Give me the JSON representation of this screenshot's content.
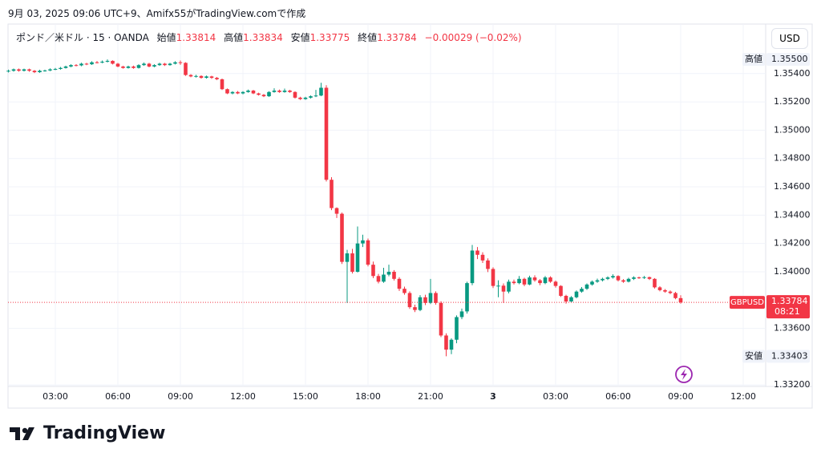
{
  "header": {
    "text": "9月 03, 2025 09:06 UTC+9、Amifx55がTradingView.comで作成"
  },
  "chart_data": {
    "type": "candlestick",
    "legend": {
      "symbol": "ポンド／米ドル · 15 · OANDA",
      "open_label": "始値",
      "high_label": "高値",
      "low_label": "安値",
      "close_label": "終値",
      "change": "−0.00029 (−0.02%)"
    },
    "currency": "USD",
    "up_color": "#089981",
    "down_color": "#f23645",
    "grid": true,
    "ylim": [
      1.3319,
      1.3575
    ],
    "yticks": [
      {
        "value": 1.354,
        "label": "1.35400"
      },
      {
        "value": 1.352,
        "label": "1.35200"
      },
      {
        "value": 1.35,
        "label": "1.35000"
      },
      {
        "value": 1.348,
        "label": "1.34800"
      },
      {
        "value": 1.346,
        "label": "1.34600"
      },
      {
        "value": 1.344,
        "label": "1.34400"
      },
      {
        "value": 1.342,
        "label": "1.34200"
      },
      {
        "value": 1.34,
        "label": "1.34000"
      },
      {
        "value": 1.336,
        "label": "1.33600"
      },
      {
        "value": 1.332,
        "label": "1.33200"
      }
    ],
    "xticks": [
      {
        "value": "09-02 03:00",
        "label": "03:00"
      },
      {
        "value": "09-02 06:00",
        "label": "06:00"
      },
      {
        "value": "09-02 09:00",
        "label": "09:00"
      },
      {
        "value": "09-02 12:00",
        "label": "12:00"
      },
      {
        "value": "09-02 15:00",
        "label": "15:00"
      },
      {
        "value": "09-02 18:00",
        "label": "18:00"
      },
      {
        "value": "09-02 21:00",
        "label": "21:00"
      },
      {
        "value": "09-03 00:00",
        "label": "3"
      },
      {
        "value": "09-03 03:00",
        "label": "03:00"
      },
      {
        "value": "09-03 06:00",
        "label": "06:00"
      },
      {
        "value": "09-03 09:00",
        "label": "09:00"
      },
      {
        "value": "09-03 12:00",
        "label": "12:00"
      }
    ],
    "high_marker": {
      "name": "高値",
      "value": 1.355,
      "value_label": "1.35500"
    },
    "low_marker": {
      "name": "安値",
      "value": 1.33403
    },
    "last_price": {
      "name": "GBPUSD",
      "countdown": "08:21"
    },
    "x": [
      "09-02 00:45",
      "09-02 01:00",
      "09-02 01:15",
      "09-02 01:30",
      "09-02 01:45",
      "09-02 02:00",
      "09-02 02:15",
      "09-02 02:30",
      "09-02 02:45",
      "09-02 03:00",
      "09-02 03:15",
      "09-02 03:30",
      "09-02 03:45",
      "09-02 04:00",
      "09-02 04:15",
      "09-02 04:30",
      "09-02 04:45",
      "09-02 05:00",
      "09-02 05:15",
      "09-02 05:30",
      "09-02 05:45",
      "09-02 06:00",
      "09-02 06:15",
      "09-02 06:30",
      "09-02 06:45",
      "09-02 07:00",
      "09-02 07:15",
      "09-02 07:30",
      "09-02 07:45",
      "09-02 08:00",
      "09-02 08:15",
      "09-02 08:30",
      "09-02 08:45",
      "09-02 09:00",
      "09-02 09:15",
      "09-02 09:30",
      "09-02 09:45",
      "09-02 10:00",
      "09-02 10:15",
      "09-02 10:30",
      "09-02 10:45",
      "09-02 11:00",
      "09-02 11:15",
      "09-02 11:30",
      "09-02 11:45",
      "09-02 12:00",
      "09-02 12:15",
      "09-02 12:30",
      "09-02 12:45",
      "09-02 13:00",
      "09-02 13:15",
      "09-02 13:30",
      "09-02 13:45",
      "09-02 14:00",
      "09-02 14:15",
      "09-02 14:30",
      "09-02 14:45",
      "09-02 15:00",
      "09-02 15:15",
      "09-02 15:30",
      "09-02 15:45",
      "09-02 16:00",
      "09-02 16:15",
      "09-02 16:30",
      "09-02 16:45",
      "09-02 17:00",
      "09-02 17:15",
      "09-02 17:30",
      "09-02 17:45",
      "09-02 18:00",
      "09-02 18:15",
      "09-02 18:30",
      "09-02 18:45",
      "09-02 19:00",
      "09-02 19:15",
      "09-02 19:30",
      "09-02 19:45",
      "09-02 20:00",
      "09-02 20:15",
      "09-02 20:30",
      "09-02 20:45",
      "09-02 21:00",
      "09-02 21:15",
      "09-02 21:30",
      "09-02 21:45",
      "09-02 22:00",
      "09-02 22:15",
      "09-02 22:30",
      "09-02 22:45",
      "09-02 23:00",
      "09-02 23:15",
      "09-02 23:30",
      "09-02 23:45",
      "09-03 00:00",
      "09-03 00:15",
      "09-03 00:30",
      "09-03 00:45",
      "09-03 01:00",
      "09-03 01:15",
      "09-03 01:30",
      "09-03 01:45",
      "09-03 02:00",
      "09-03 02:15",
      "09-03 02:30",
      "09-03 02:45",
      "09-03 03:00",
      "09-03 03:15",
      "09-03 03:30",
      "09-03 03:45",
      "09-03 04:00",
      "09-03 04:15",
      "09-03 04:30",
      "09-03 04:45",
      "09-03 05:00",
      "09-03 05:15",
      "09-03 05:30",
      "09-03 05:45",
      "09-03 06:00",
      "09-03 06:15",
      "09-03 06:30",
      "09-03 06:45",
      "09-03 07:00",
      "09-03 07:15",
      "09-03 07:30",
      "09-03 07:45",
      "09-03 08:00",
      "09-03 08:15",
      "09-03 08:30",
      "09-03 08:45",
      "09-03 09:00"
    ],
    "candles": [
      [
        1.35415,
        1.35428,
        1.35408,
        1.3542
      ],
      [
        1.3542,
        1.35436,
        1.35414,
        1.3543
      ],
      [
        1.3543,
        1.35436,
        1.35414,
        1.3542
      ],
      [
        1.3542,
        1.35435,
        1.35415,
        1.3543
      ],
      [
        1.3543,
        1.35435,
        1.35413,
        1.3542
      ],
      [
        1.3542,
        1.35425,
        1.35404,
        1.3541
      ],
      [
        1.3541,
        1.35427,
        1.35405,
        1.3542
      ],
      [
        1.3542,
        1.35428,
        1.35414,
        1.35422
      ],
      [
        1.35422,
        1.35437,
        1.35417,
        1.3543
      ],
      [
        1.3543,
        1.3544,
        1.35424,
        1.35433
      ],
      [
        1.35433,
        1.35447,
        1.35428,
        1.3544
      ],
      [
        1.3544,
        1.35456,
        1.35436,
        1.3545
      ],
      [
        1.3545,
        1.35466,
        1.35445,
        1.3546
      ],
      [
        1.3546,
        1.35467,
        1.35451,
        1.35458
      ],
      [
        1.35458,
        1.35477,
        1.35452,
        1.3547
      ],
      [
        1.3547,
        1.35476,
        1.3546,
        1.35466
      ],
      [
        1.35466,
        1.35487,
        1.35461,
        1.3548
      ],
      [
        1.3548,
        1.35489,
        1.35472,
        1.35478
      ],
      [
        1.35478,
        1.35492,
        1.35473,
        1.35484
      ],
      [
        1.35484,
        1.355,
        1.35479,
        1.3549
      ],
      [
        1.3549,
        1.35494,
        1.35465,
        1.3547
      ],
      [
        1.3547,
        1.35475,
        1.35445,
        1.3545
      ],
      [
        1.3545,
        1.35455,
        1.35435,
        1.3544
      ],
      [
        1.3544,
        1.35456,
        1.35436,
        1.3545
      ],
      [
        1.3545,
        1.35456,
        1.35434,
        1.3544
      ],
      [
        1.3544,
        1.35466,
        1.35436,
        1.3546
      ],
      [
        1.3546,
        1.35478,
        1.35455,
        1.3547
      ],
      [
        1.3547,
        1.35476,
        1.35444,
        1.3545
      ],
      [
        1.3545,
        1.35466,
        1.35445,
        1.3546
      ],
      [
        1.3546,
        1.35477,
        1.35455,
        1.3547
      ],
      [
        1.3547,
        1.35475,
        1.35454,
        1.3546
      ],
      [
        1.3546,
        1.35476,
        1.35456,
        1.3547
      ],
      [
        1.3547,
        1.35487,
        1.35465,
        1.3548
      ],
      [
        1.3548,
        1.35492,
        1.35462,
        1.35476
      ],
      [
        1.35476,
        1.3548,
        1.35384,
        1.3539
      ],
      [
        1.3539,
        1.35396,
        1.35374,
        1.3538
      ],
      [
        1.3538,
        1.35392,
        1.35372,
        1.35383
      ],
      [
        1.35383,
        1.35388,
        1.35364,
        1.3537
      ],
      [
        1.3537,
        1.35386,
        1.35365,
        1.3538
      ],
      [
        1.3538,
        1.35385,
        1.35363,
        1.3537
      ],
      [
        1.3537,
        1.35376,
        1.35354,
        1.3536
      ],
      [
        1.3536,
        1.35365,
        1.35284,
        1.3529
      ],
      [
        1.3529,
        1.35295,
        1.35255,
        1.3526
      ],
      [
        1.3526,
        1.35276,
        1.35254,
        1.3527
      ],
      [
        1.3527,
        1.35277,
        1.35255,
        1.3526
      ],
      [
        1.3526,
        1.35276,
        1.35254,
        1.3527
      ],
      [
        1.3527,
        1.35287,
        1.35265,
        1.3528
      ],
      [
        1.3528,
        1.35285,
        1.35255,
        1.3526
      ],
      [
        1.3526,
        1.35265,
        1.35245,
        1.3525
      ],
      [
        1.3525,
        1.35256,
        1.35234,
        1.3524
      ],
      [
        1.3524,
        1.35276,
        1.35235,
        1.3527
      ],
      [
        1.3527,
        1.35296,
        1.35265,
        1.3528
      ],
      [
        1.3528,
        1.35287,
        1.35264,
        1.3527
      ],
      [
        1.3527,
        1.35294,
        1.35265,
        1.3528
      ],
      [
        1.3528,
        1.35285,
        1.35264,
        1.3527
      ],
      [
        1.3527,
        1.35275,
        1.35224,
        1.3523
      ],
      [
        1.3523,
        1.35236,
        1.35214,
        1.3522
      ],
      [
        1.3522,
        1.35236,
        1.35215,
        1.3523
      ],
      [
        1.3523,
        1.35246,
        1.35224,
        1.3524
      ],
      [
        1.3524,
        1.35285,
        1.35234,
        1.35245
      ],
      [
        1.35245,
        1.35335,
        1.3524,
        1.353
      ],
      [
        1.353,
        1.35318,
        1.34638,
        1.3465
      ],
      [
        1.3465,
        1.34668,
        1.34435,
        1.3445
      ],
      [
        1.3445,
        1.34455,
        1.3438,
        1.3441
      ],
      [
        1.3441,
        1.34418,
        1.34055,
        1.3407
      ],
      [
        1.3407,
        1.34155,
        1.3378,
        1.3413
      ],
      [
        1.3413,
        1.34162,
        1.33988,
        1.34
      ],
      [
        1.34,
        1.3432,
        1.33995,
        1.342
      ],
      [
        1.342,
        1.34262,
        1.34175,
        1.34222
      ],
      [
        1.34222,
        1.34235,
        1.34038,
        1.3405
      ],
      [
        1.3405,
        1.34072,
        1.33955,
        1.3397
      ],
      [
        1.3397,
        1.33985,
        1.33918,
        1.3393
      ],
      [
        1.3393,
        1.34028,
        1.33922,
        1.3398
      ],
      [
        1.3398,
        1.3405,
        1.33968,
        1.34
      ],
      [
        1.34,
        1.34012,
        1.33938,
        1.3395
      ],
      [
        1.3395,
        1.33962,
        1.33865,
        1.3388
      ],
      [
        1.3388,
        1.33895,
        1.33838,
        1.3385
      ],
      [
        1.3385,
        1.33862,
        1.33738,
        1.3375
      ],
      [
        1.3375,
        1.33768,
        1.33715,
        1.3373
      ],
      [
        1.3373,
        1.33835,
        1.33722,
        1.3382
      ],
      [
        1.3382,
        1.33838,
        1.33765,
        1.3378
      ],
      [
        1.3378,
        1.3395,
        1.33772,
        1.3385
      ],
      [
        1.3385,
        1.33862,
        1.33768,
        1.3378
      ],
      [
        1.3378,
        1.33792,
        1.33538,
        1.3355
      ],
      [
        1.3355,
        1.33565,
        1.33403,
        1.3345
      ],
      [
        1.3345,
        1.3353,
        1.33418,
        1.3352
      ],
      [
        1.3352,
        1.33692,
        1.33495,
        1.3368
      ],
      [
        1.3368,
        1.3374,
        1.33665,
        1.3372
      ],
      [
        1.3372,
        1.3393,
        1.33705,
        1.3392
      ],
      [
        1.3392,
        1.3419,
        1.33905,
        1.3415
      ],
      [
        1.3415,
        1.34175,
        1.3409,
        1.3412
      ],
      [
        1.3412,
        1.34138,
        1.34062,
        1.3408
      ],
      [
        1.3408,
        1.34095,
        1.33998,
        1.3402
      ],
      [
        1.3402,
        1.34032,
        1.33885,
        1.339
      ],
      [
        1.339,
        1.3394,
        1.3382,
        1.33902
      ],
      [
        1.33902,
        1.33918,
        1.3378,
        1.3386
      ],
      [
        1.3386,
        1.33945,
        1.33848,
        1.3393
      ],
      [
        1.3393,
        1.33945,
        1.3391,
        1.3392
      ],
      [
        1.3392,
        1.3397,
        1.33912,
        1.3395
      ],
      [
        1.3395,
        1.33958,
        1.33898,
        1.3391
      ],
      [
        1.3391,
        1.33972,
        1.33905,
        1.3396
      ],
      [
        1.3396,
        1.33975,
        1.3393,
        1.3394
      ],
      [
        1.3394,
        1.33948,
        1.33905,
        1.3392
      ],
      [
        1.3392,
        1.3397,
        1.33912,
        1.3396
      ],
      [
        1.3396,
        1.33968,
        1.33922,
        1.3393
      ],
      [
        1.3393,
        1.33938,
        1.33888,
        1.339
      ],
      [
        1.339,
        1.33905,
        1.33822,
        1.3383
      ],
      [
        1.3383,
        1.33838,
        1.33775,
        1.3379
      ],
      [
        1.3379,
        1.33828,
        1.33782,
        1.3382
      ],
      [
        1.3382,
        1.33868,
        1.33812,
        1.3386
      ],
      [
        1.3386,
        1.33892,
        1.33852,
        1.3388
      ],
      [
        1.3388,
        1.33918,
        1.33872,
        1.3391
      ],
      [
        1.3391,
        1.33938,
        1.33902,
        1.3393
      ],
      [
        1.3393,
        1.33952,
        1.33922,
        1.3394
      ],
      [
        1.3394,
        1.33958,
        1.33932,
        1.3395
      ],
      [
        1.3395,
        1.33968,
        1.33942,
        1.3396
      ],
      [
        1.3396,
        1.33982,
        1.33952,
        1.3397
      ],
      [
        1.3397,
        1.33975,
        1.33932,
        1.3394
      ],
      [
        1.3394,
        1.33948,
        1.33922,
        1.3393
      ],
      [
        1.3393,
        1.33958,
        1.33925,
        1.3395
      ],
      [
        1.3395,
        1.33968,
        1.33942,
        1.3396
      ],
      [
        1.3396,
        1.33966,
        1.3395,
        1.33958
      ],
      [
        1.33958,
        1.3397,
        1.3395,
        1.33962
      ],
      [
        1.33962,
        1.33966,
        1.33942,
        1.3395
      ],
      [
        1.3395,
        1.33955,
        1.33882,
        1.3389
      ],
      [
        1.3389,
        1.33898,
        1.33862,
        1.3387
      ],
      [
        1.3387,
        1.33878,
        1.33852,
        1.3386
      ],
      [
        1.3386,
        1.33868,
        1.33842,
        1.3385
      ],
      [
        1.3385,
        1.33858,
        1.33806,
        1.33814
      ],
      [
        1.33814,
        1.33834,
        1.33775,
        1.33784
      ]
    ]
  },
  "footer": {
    "brand": "TradingView"
  }
}
